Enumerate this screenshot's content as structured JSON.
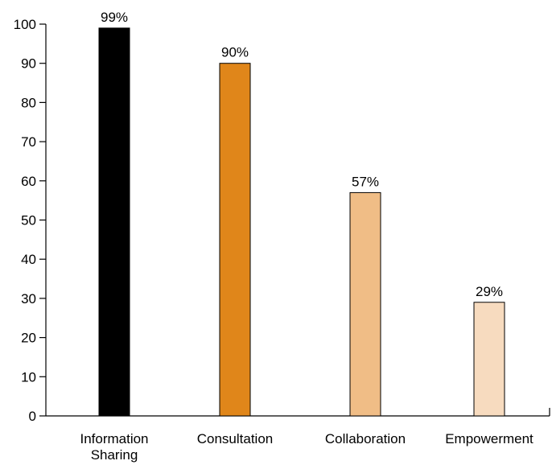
{
  "chart_data": {
    "type": "bar",
    "categories": [
      "Information\nSharing",
      "Consultation",
      "Collaboration",
      "Empowerment"
    ],
    "values": [
      99,
      90,
      57,
      29
    ],
    "data_labels": [
      "99%",
      "90%",
      "57%",
      "29%"
    ],
    "bar_colors": [
      "#000000",
      "#e0861a",
      "#f0bd86",
      "#f7dbbf"
    ],
    "title": "",
    "xlabel": "",
    "ylabel": "",
    "ylim": [
      0,
      100
    ],
    "yticks": [
      0,
      10,
      20,
      30,
      40,
      50,
      60,
      70,
      80,
      90,
      100
    ],
    "grid": false,
    "legend": "none"
  }
}
